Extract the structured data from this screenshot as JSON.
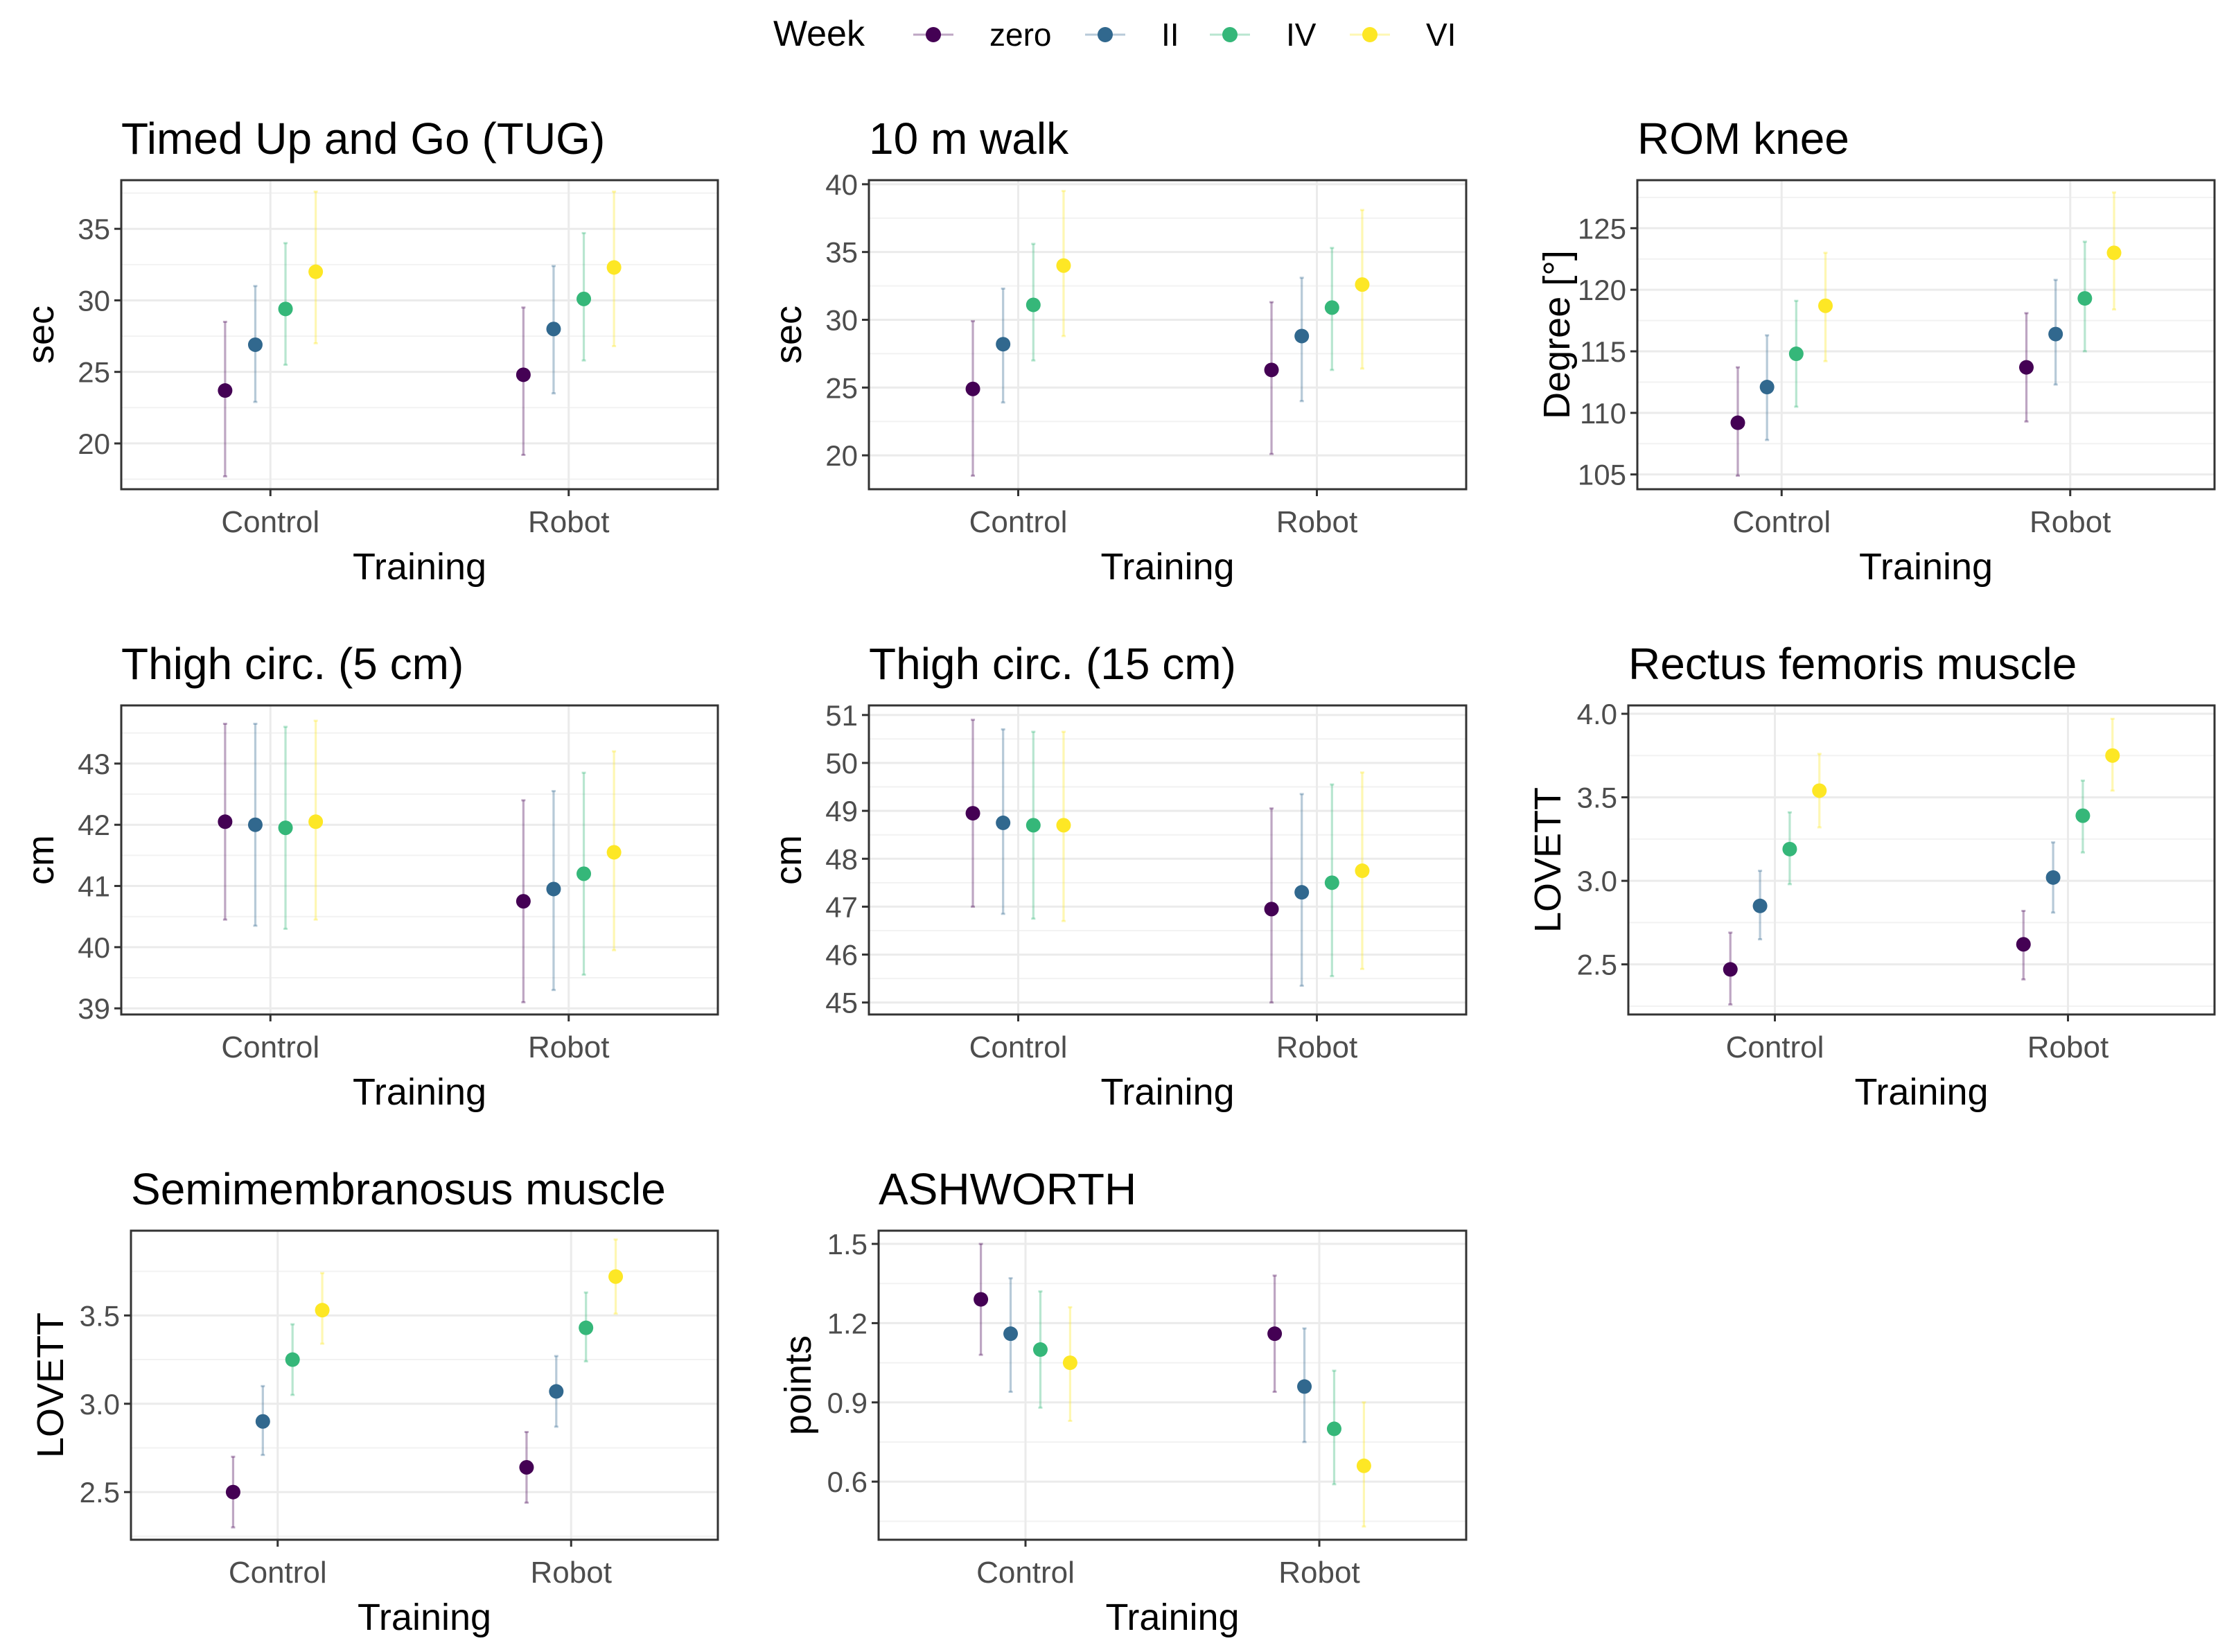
{
  "legend": {
    "title": "Week",
    "items": [
      {
        "label": "zero",
        "color": "#440154"
      },
      {
        "label": "II",
        "color": "#31688E"
      },
      {
        "label": "IV",
        "color": "#35B779"
      },
      {
        "label": "VI",
        "color": "#FDE725"
      }
    ]
  },
  "chart_data": [
    {
      "type": "scatter",
      "title": "Timed Up and Go (TUG)",
      "xlabel": "Training",
      "ylabel": "sec",
      "categories": [
        "Control",
        "Robot"
      ],
      "ylim": [
        16.8,
        38.4
      ],
      "yticks": [
        20,
        25,
        30,
        35
      ],
      "yticklabels": [
        "20",
        "25",
        "30",
        "35"
      ],
      "series": [
        {
          "name": "zero",
          "values": [
            23.7,
            24.8
          ],
          "lower": [
            17.7,
            19.2
          ],
          "upper": [
            28.5,
            29.5
          ]
        },
        {
          "name": "II",
          "values": [
            26.9,
            28.0
          ],
          "lower": [
            22.9,
            23.5
          ],
          "upper": [
            31.0,
            32.4
          ]
        },
        {
          "name": "IV",
          "values": [
            29.4,
            30.1
          ],
          "lower": [
            25.5,
            25.8
          ],
          "upper": [
            34.0,
            34.7
          ]
        },
        {
          "name": "VI",
          "values": [
            32.0,
            32.3
          ],
          "lower": [
            27.0,
            26.8
          ],
          "upper": [
            37.6,
            37.6
          ]
        }
      ]
    },
    {
      "type": "scatter",
      "title": "10 m walk",
      "xlabel": "Training",
      "ylabel": "sec",
      "categories": [
        "Control",
        "Robot"
      ],
      "ylim": [
        17.5,
        40.3
      ],
      "yticks": [
        20,
        25,
        30,
        35,
        40
      ],
      "yticklabels": [
        "20",
        "25",
        "30",
        "35",
        "40"
      ],
      "series": [
        {
          "name": "zero",
          "values": [
            24.9,
            26.3
          ],
          "lower": [
            18.5,
            20.1
          ],
          "upper": [
            29.9,
            31.3
          ]
        },
        {
          "name": "II",
          "values": [
            28.2,
            28.8
          ],
          "lower": [
            23.9,
            24.0
          ],
          "upper": [
            32.3,
            33.1
          ]
        },
        {
          "name": "IV",
          "values": [
            31.1,
            30.9
          ],
          "lower": [
            27.0,
            26.3
          ],
          "upper": [
            35.6,
            35.3
          ]
        },
        {
          "name": "VI",
          "values": [
            34.0,
            32.6
          ],
          "lower": [
            28.8,
            26.4
          ],
          "upper": [
            39.5,
            38.1
          ]
        }
      ]
    },
    {
      "type": "scatter",
      "title": "ROM knee",
      "xlabel": "Training",
      "ylabel": "Degree [°]",
      "categories": [
        "Control",
        "Robot"
      ],
      "ylim": [
        103.8,
        128.9
      ],
      "yticks": [
        105,
        110,
        115,
        120,
        125
      ],
      "yticklabels": [
        "105",
        "110",
        "115",
        "120",
        "125"
      ],
      "series": [
        {
          "name": "zero",
          "values": [
            109.2,
            113.7
          ],
          "lower": [
            104.9,
            109.3
          ],
          "upper": [
            113.7,
            118.1
          ]
        },
        {
          "name": "II",
          "values": [
            112.1,
            116.4
          ],
          "lower": [
            107.8,
            112.3
          ],
          "upper": [
            116.3,
            120.8
          ]
        },
        {
          "name": "IV",
          "values": [
            114.8,
            119.3
          ],
          "lower": [
            110.5,
            115.0
          ],
          "upper": [
            119.1,
            123.9
          ]
        },
        {
          "name": "VI",
          "values": [
            118.7,
            123.0
          ],
          "lower": [
            114.2,
            118.4
          ],
          "upper": [
            123.0,
            127.9
          ]
        }
      ]
    },
    {
      "type": "scatter",
      "title": "Thigh circ. (5 cm)",
      "xlabel": "Training",
      "ylabel": "cm",
      "categories": [
        "Control",
        "Robot"
      ],
      "ylim": [
        38.9,
        43.95
      ],
      "yticks": [
        39,
        40,
        41,
        42,
        43
      ],
      "yticklabels": [
        "39",
        "40",
        "41",
        "42",
        "43"
      ],
      "series": [
        {
          "name": "zero",
          "values": [
            42.05,
            40.75
          ],
          "lower": [
            40.45,
            39.1
          ],
          "upper": [
            43.65,
            42.4
          ]
        },
        {
          "name": "II",
          "values": [
            42.0,
            40.95
          ],
          "lower": [
            40.35,
            39.3
          ],
          "upper": [
            43.65,
            42.55
          ]
        },
        {
          "name": "IV",
          "values": [
            41.95,
            41.2
          ],
          "lower": [
            40.3,
            39.55
          ],
          "upper": [
            43.6,
            42.85
          ]
        },
        {
          "name": "VI",
          "values": [
            42.05,
            41.55
          ],
          "lower": [
            40.45,
            39.95
          ],
          "upper": [
            43.7,
            43.2
          ]
        }
      ]
    },
    {
      "type": "scatter",
      "title": "Thigh circ. (15 cm)",
      "xlabel": "Training",
      "ylabel": "cm",
      "categories": [
        "Control",
        "Robot"
      ],
      "ylim": [
        44.75,
        51.2
      ],
      "yticks": [
        45,
        46,
        47,
        48,
        49,
        50,
        51
      ],
      "yticklabels": [
        "45",
        "46",
        "47",
        "48",
        "49",
        "50",
        "51"
      ],
      "series": [
        {
          "name": "zero",
          "values": [
            48.95,
            46.95
          ],
          "lower": [
            47.0,
            45.0
          ],
          "upper": [
            50.9,
            49.05
          ]
        },
        {
          "name": "II",
          "values": [
            48.75,
            47.3
          ],
          "lower": [
            46.85,
            45.35
          ],
          "upper": [
            50.7,
            49.35
          ]
        },
        {
          "name": "IV",
          "values": [
            48.7,
            47.5
          ],
          "lower": [
            46.75,
            45.55
          ],
          "upper": [
            50.65,
            49.55
          ]
        },
        {
          "name": "VI",
          "values": [
            48.7,
            47.75
          ],
          "lower": [
            46.7,
            45.7
          ],
          "upper": [
            50.65,
            49.8
          ]
        }
      ]
    },
    {
      "type": "scatter",
      "title": "Rectus femoris muscle",
      "xlabel": "Training",
      "ylabel": "LOVETT",
      "categories": [
        "Control",
        "Robot"
      ],
      "ylim": [
        2.2,
        4.05
      ],
      "yticks": [
        2.5,
        3.0,
        3.5,
        4.0
      ],
      "yticklabels": [
        "2.5",
        "3.0",
        "3.5",
        "4.0"
      ],
      "series": [
        {
          "name": "zero",
          "values": [
            2.47,
            2.62
          ],
          "lower": [
            2.26,
            2.41
          ],
          "upper": [
            2.69,
            2.82
          ]
        },
        {
          "name": "II",
          "values": [
            2.85,
            3.02
          ],
          "lower": [
            2.65,
            2.81
          ],
          "upper": [
            3.06,
            3.23
          ]
        },
        {
          "name": "IV",
          "values": [
            3.19,
            3.39
          ],
          "lower": [
            2.98,
            3.17
          ],
          "upper": [
            3.41,
            3.6
          ]
        },
        {
          "name": "VI",
          "values": [
            3.54,
            3.75
          ],
          "lower": [
            3.32,
            3.54
          ],
          "upper": [
            3.76,
            3.97
          ]
        }
      ]
    },
    {
      "type": "scatter",
      "title": "Semimembranosus muscle",
      "xlabel": "Training",
      "ylabel": "LOVETT",
      "categories": [
        "Control",
        "Robot"
      ],
      "ylim": [
        2.23,
        3.98
      ],
      "yticks": [
        2.5,
        3.0,
        3.5
      ],
      "yticklabels": [
        "2.5",
        "3.0",
        "3.5"
      ],
      "series": [
        {
          "name": "zero",
          "values": [
            2.5,
            2.64
          ],
          "lower": [
            2.3,
            2.44
          ],
          "upper": [
            2.7,
            2.84
          ]
        },
        {
          "name": "II",
          "values": [
            2.9,
            3.07
          ],
          "lower": [
            2.71,
            2.87
          ],
          "upper": [
            3.1,
            3.27
          ]
        },
        {
          "name": "IV",
          "values": [
            3.25,
            3.43
          ],
          "lower": [
            3.05,
            3.24
          ],
          "upper": [
            3.45,
            3.63
          ]
        },
        {
          "name": "VI",
          "values": [
            3.53,
            3.72
          ],
          "lower": [
            3.34,
            3.51
          ],
          "upper": [
            3.74,
            3.93
          ]
        }
      ]
    },
    {
      "type": "scatter",
      "title": "ASHWORTH",
      "xlabel": "Training",
      "ylabel": "points",
      "categories": [
        "Control",
        "Robot"
      ],
      "ylim": [
        0.38,
        1.55
      ],
      "yticks": [
        0.6,
        0.9,
        1.2,
        1.5
      ],
      "yticklabels": [
        "0.6",
        "0.9",
        "1.2",
        "1.5"
      ],
      "series": [
        {
          "name": "zero",
          "values": [
            1.29,
            1.16
          ],
          "lower": [
            1.08,
            0.94
          ],
          "upper": [
            1.5,
            1.38
          ]
        },
        {
          "name": "II",
          "values": [
            1.16,
            0.96
          ],
          "lower": [
            0.94,
            0.75
          ],
          "upper": [
            1.37,
            1.18
          ]
        },
        {
          "name": "IV",
          "values": [
            1.1,
            0.8
          ],
          "lower": [
            0.88,
            0.59
          ],
          "upper": [
            1.32,
            1.02
          ]
        },
        {
          "name": "VI",
          "values": [
            1.05,
            0.66
          ],
          "lower": [
            0.83,
            0.43
          ],
          "upper": [
            1.26,
            0.9
          ]
        }
      ]
    }
  ]
}
